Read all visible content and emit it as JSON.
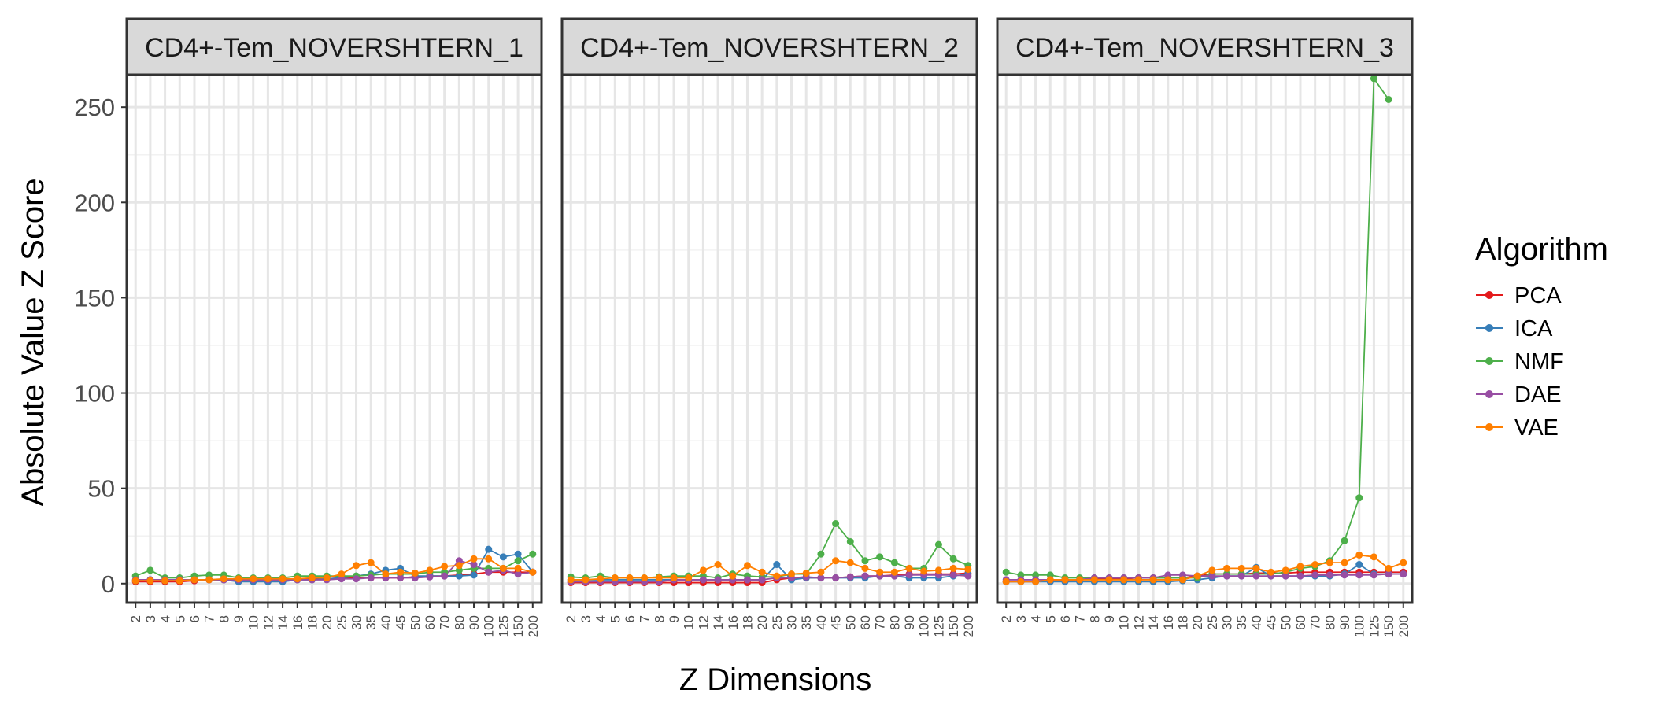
{
  "chart_data": {
    "type": "line",
    "ylabel": "Absolute Value Z Score",
    "xlabel": "Z Dimensions",
    "legend": {
      "title": "Algorithm",
      "placement": "right"
    },
    "grid": true,
    "ylim": [
      -10,
      267
    ],
    "y_ticks": [
      0,
      50,
      100,
      150,
      200,
      250
    ],
    "categories": [
      "2",
      "3",
      "4",
      "5",
      "6",
      "7",
      "8",
      "9",
      "10",
      "12",
      "14",
      "16",
      "18",
      "20",
      "25",
      "30",
      "35",
      "40",
      "45",
      "50",
      "60",
      "70",
      "80",
      "90",
      "100",
      "125",
      "150",
      "200"
    ],
    "colors": {
      "PCA": "#e41a1c",
      "ICA": "#377eb8",
      "NMF": "#4daf4a",
      "DAE": "#984ea3",
      "VAE": "#ff7f00"
    },
    "facets": [
      {
        "title": "CD4+-Tem_NOVERSHTERN_1",
        "series": [
          {
            "name": "PCA",
            "values": [
              1.0,
              1.0,
              1.0,
              1.0,
              1.5,
              2.0,
              2.0,
              2.0,
              2.0,
              2.0,
              2.0,
              2.0,
              2.5,
              2.5,
              3.0,
              3.0,
              3.0,
              3.0,
              3.0,
              3.5,
              4.0,
              4.0,
              4.5,
              5.0,
              6.0,
              6.0,
              6.0,
              6.0
            ]
          },
          {
            "name": "ICA",
            "values": [
              1.5,
              2.0,
              1.5,
              2.0,
              2.0,
              2.0,
              2.0,
              1.0,
              1.0,
              1.0,
              1.0,
              2.0,
              2.0,
              2.5,
              3.0,
              4.0,
              5.0,
              7.0,
              8.0,
              4.0,
              4.0,
              4.0,
              4.0,
              4.5,
              18.0,
              14.0,
              15.5,
              6.0
            ]
          },
          {
            "name": "NMF",
            "values": [
              4.0,
              7.0,
              3.0,
              3.0,
              4.0,
              4.5,
              4.5,
              3.0,
              3.0,
              3.0,
              3.0,
              4.0,
              4.0,
              4.0,
              4.0,
              4.0,
              4.5,
              5.0,
              5.0,
              5.0,
              6.0,
              6.0,
              7.0,
              8.0,
              8.0,
              8.0,
              12.0,
              15.5
            ]
          },
          {
            "name": "DAE",
            "values": [
              2.0,
              2.0,
              2.0,
              2.0,
              2.0,
              2.0,
              2.0,
              2.0,
              2.0,
              2.0,
              2.0,
              2.0,
              2.0,
              2.0,
              2.5,
              2.5,
              3.0,
              3.0,
              3.0,
              3.0,
              3.5,
              4.0,
              12.0,
              10.0,
              6.0,
              7.0,
              5.0,
              6.0
            ]
          },
          {
            "name": "VAE",
            "values": [
              1.5,
              1.5,
              1.5,
              1.5,
              2.0,
              2.0,
              2.5,
              2.5,
              2.5,
              2.5,
              2.5,
              2.5,
              3.0,
              3.0,
              5.0,
              9.5,
              11.0,
              5.0,
              6.0,
              5.5,
              7.0,
              9.0,
              9.5,
              13.0,
              13.0,
              8.0,
              8.0,
              6.0
            ]
          }
        ]
      },
      {
        "title": "CD4+-Tem_NOVERSHTERN_2",
        "series": [
          {
            "name": "PCA",
            "values": [
              0.5,
              0.5,
              0.5,
              0.5,
              0.5,
              0.5,
              0.5,
              0.5,
              0.5,
              0.5,
              0.5,
              0.5,
              0.5,
              0.5,
              2.0,
              3.0,
              3.0,
              3.0,
              3.0,
              3.5,
              4.0,
              4.0,
              4.5,
              5.0,
              5.0,
              5.0,
              5.0,
              5.5
            ]
          },
          {
            "name": "ICA",
            "values": [
              2.0,
              2.0,
              2.0,
              2.0,
              2.0,
              2.0,
              2.0,
              2.0,
              2.0,
              2.0,
              2.0,
              2.0,
              2.0,
              2.0,
              10.0,
              2.0,
              3.0,
              3.0,
              3.0,
              3.0,
              3.0,
              4.0,
              4.0,
              3.0,
              3.0,
              3.0,
              4.0,
              5.0
            ]
          },
          {
            "name": "NMF",
            "values": [
              3.5,
              3.0,
              4.0,
              3.0,
              3.0,
              3.0,
              3.5,
              4.0,
              4.0,
              4.0,
              3.0,
              5.0,
              4.0,
              3.5,
              3.5,
              5.0,
              5.0,
              15.5,
              31.5,
              22.0,
              12.0,
              14.0,
              11.0,
              8.0,
              8.0,
              20.5,
              13.0,
              9.5
            ]
          },
          {
            "name": "DAE",
            "values": [
              1.0,
              1.0,
              1.0,
              1.0,
              1.0,
              1.0,
              1.0,
              2.0,
              2.0,
              2.0,
              2.0,
              2.0,
              2.0,
              2.0,
              3.0,
              3.0,
              3.5,
              3.0,
              3.0,
              3.5,
              4.0,
              4.0,
              4.0,
              4.5,
              4.5,
              4.5,
              4.5,
              4.0
            ]
          },
          {
            "name": "VAE",
            "values": [
              2.0,
              2.0,
              2.5,
              3.0,
              3.0,
              3.0,
              3.0,
              3.0,
              3.0,
              7.0,
              10.0,
              4.0,
              9.5,
              6.0,
              4.0,
              5.0,
              5.5,
              6.0,
              12.0,
              11.0,
              8.0,
              6.0,
              6.0,
              8.0,
              6.5,
              7.0,
              8.0,
              7.5
            ]
          }
        ]
      },
      {
        "title": "CD4+-Tem_NOVERSHTERN_3",
        "series": [
          {
            "name": "PCA",
            "values": [
              1.0,
              1.0,
              1.0,
              1.5,
              2.0,
              2.0,
              2.5,
              2.5,
              2.5,
              3.0,
              3.0,
              3.0,
              3.0,
              4.0,
              5.0,
              5.0,
              5.0,
              5.5,
              5.5,
              5.5,
              6.0,
              6.0,
              6.0,
              6.0,
              6.0,
              6.0,
              6.0,
              6.0
            ]
          },
          {
            "name": "ICA",
            "values": [
              1.0,
              1.0,
              1.0,
              1.0,
              1.0,
              1.0,
              1.0,
              1.0,
              1.0,
              1.0,
              1.0,
              1.0,
              1.5,
              2.0,
              3.0,
              4.0,
              4.0,
              8.5,
              4.0,
              4.0,
              4.0,
              4.0,
              4.0,
              5.0,
              10.0,
              5.0,
              5.0,
              5.0
            ]
          },
          {
            "name": "NMF",
            "values": [
              6.0,
              4.5,
              4.5,
              4.5,
              3.0,
              3.0,
              3.0,
              3.0,
              3.0,
              3.0,
              3.0,
              3.0,
              3.0,
              3.0,
              5.0,
              5.0,
              5.0,
              5.0,
              5.0,
              6.0,
              8.0,
              9.0,
              12.0,
              22.5,
              45.0,
              265.0,
              254.0,
              null
            ]
          },
          {
            "name": "DAE",
            "values": [
              2.0,
              2.0,
              2.0,
              2.0,
              2.0,
              2.0,
              3.0,
              3.0,
              3.0,
              3.0,
              3.0,
              4.5,
              4.5,
              4.0,
              4.0,
              4.0,
              4.0,
              4.0,
              4.0,
              4.0,
              4.0,
              4.5,
              4.5,
              4.5,
              4.5,
              4.5,
              5.0,
              5.0
            ]
          },
          {
            "name": "VAE",
            "values": [
              1.0,
              1.0,
              1.0,
              2.0,
              2.0,
              2.0,
              2.0,
              2.0,
              2.0,
              2.0,
              2.0,
              2.0,
              2.0,
              4.0,
              7.0,
              8.0,
              8.0,
              8.0,
              6.0,
              7.0,
              9.0,
              10.0,
              11.0,
              11.0,
              15.0,
              14.0,
              8.0,
              11.0
            ]
          }
        ]
      }
    ]
  }
}
